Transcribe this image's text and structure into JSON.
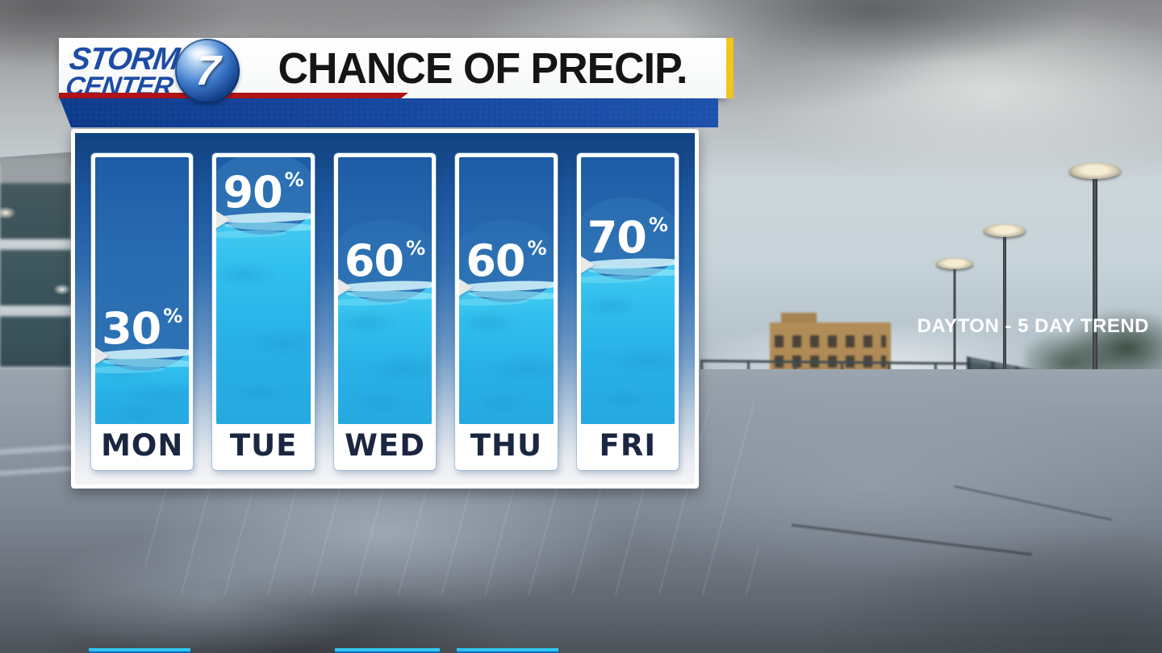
{
  "branding": {
    "logo_line1": "STORM",
    "logo_line2": "CENTER",
    "channel_number": "7"
  },
  "header": {
    "title": "CHANCE OF PRECIP.",
    "location_banner": "DAYTON - 5 DAY TREND"
  },
  "chart_data": {
    "type": "bar",
    "title": "CHANCE OF PRECIP.",
    "subtitle": "DAYTON - 5 DAY TREND",
    "categories": [
      "MON",
      "TUE",
      "WED",
      "THU",
      "FRI"
    ],
    "values": [
      30,
      90,
      60,
      60,
      70
    ],
    "unit": "%",
    "ylim": [
      0,
      100
    ],
    "orientation": "vertical",
    "legend": false,
    "annotations": [
      "30%",
      "90%",
      "60%",
      "60%",
      "70%"
    ]
  },
  "colors": {
    "banner_blue": "#16479e",
    "logo_blue": "#1d4ca4",
    "accent_red": "#b01218",
    "accent_yellow": "#f2c41d",
    "bar_background_blue": "#2e74b6",
    "water_cyan": "#2fbdec",
    "foam_cyan": "#d7f7fd",
    "day_label_navy": "#1b2740",
    "value_text": "#ffffff",
    "bottom_bar_cyan": "#2ec6f2"
  }
}
